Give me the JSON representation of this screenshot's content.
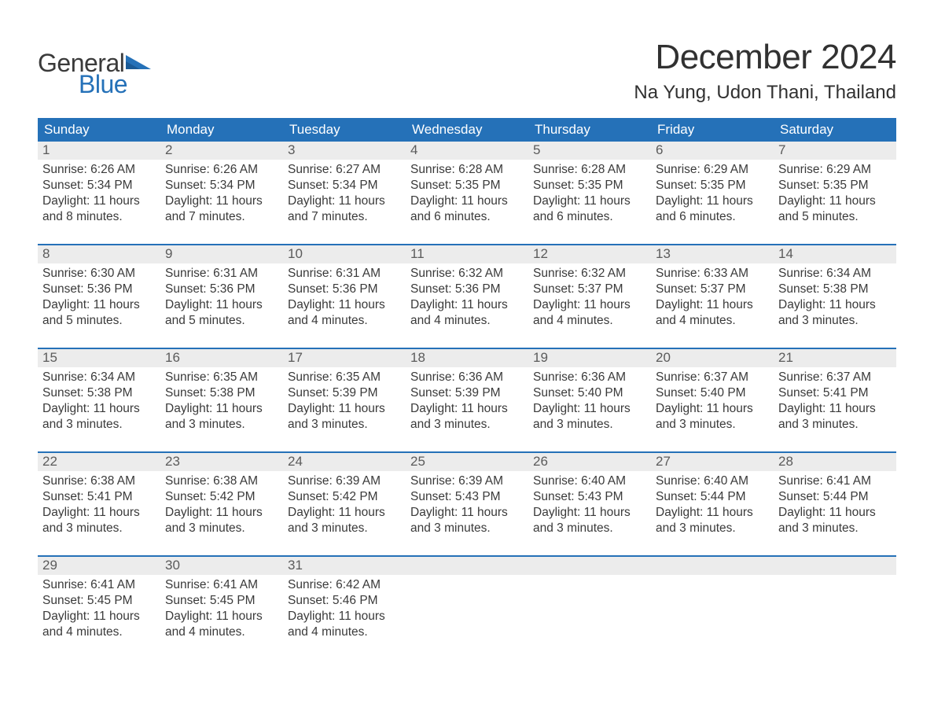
{
  "logo": {
    "word1": "General",
    "word2": "Blue",
    "flag_color": "#2571b8"
  },
  "title": "December 2024",
  "location": "Na Yung, Udon Thani, Thailand",
  "colors": {
    "header_bg": "#2571b8",
    "header_text": "#ffffff",
    "daynum_bg": "#ececec",
    "daynum_text": "#5b5b5b",
    "body_text": "#3a3a3a",
    "week_divider": "#2571b8",
    "page_bg": "#ffffff"
  },
  "typography": {
    "title_fontsize": 44,
    "location_fontsize": 24,
    "weekday_fontsize": 17,
    "daynum_fontsize": 17,
    "daytext_fontsize": 15.5,
    "logo_fontsize": 32
  },
  "weekdays": [
    "Sunday",
    "Monday",
    "Tuesday",
    "Wednesday",
    "Thursday",
    "Friday",
    "Saturday"
  ],
  "labels": {
    "sunrise": "Sunrise:",
    "sunset": "Sunset:",
    "daylight": "Daylight:"
  },
  "weeks": [
    [
      {
        "n": "1",
        "sr": "6:26 AM",
        "ss": "5:34 PM",
        "dl": "11 hours and 8 minutes."
      },
      {
        "n": "2",
        "sr": "6:26 AM",
        "ss": "5:34 PM",
        "dl": "11 hours and 7 minutes."
      },
      {
        "n": "3",
        "sr": "6:27 AM",
        "ss": "5:34 PM",
        "dl": "11 hours and 7 minutes."
      },
      {
        "n": "4",
        "sr": "6:28 AM",
        "ss": "5:35 PM",
        "dl": "11 hours and 6 minutes."
      },
      {
        "n": "5",
        "sr": "6:28 AM",
        "ss": "5:35 PM",
        "dl": "11 hours and 6 minutes."
      },
      {
        "n": "6",
        "sr": "6:29 AM",
        "ss": "5:35 PM",
        "dl": "11 hours and 6 minutes."
      },
      {
        "n": "7",
        "sr": "6:29 AM",
        "ss": "5:35 PM",
        "dl": "11 hours and 5 minutes."
      }
    ],
    [
      {
        "n": "8",
        "sr": "6:30 AM",
        "ss": "5:36 PM",
        "dl": "11 hours and 5 minutes."
      },
      {
        "n": "9",
        "sr": "6:31 AM",
        "ss": "5:36 PM",
        "dl": "11 hours and 5 minutes."
      },
      {
        "n": "10",
        "sr": "6:31 AM",
        "ss": "5:36 PM",
        "dl": "11 hours and 4 minutes."
      },
      {
        "n": "11",
        "sr": "6:32 AM",
        "ss": "5:36 PM",
        "dl": "11 hours and 4 minutes."
      },
      {
        "n": "12",
        "sr": "6:32 AM",
        "ss": "5:37 PM",
        "dl": "11 hours and 4 minutes."
      },
      {
        "n": "13",
        "sr": "6:33 AM",
        "ss": "5:37 PM",
        "dl": "11 hours and 4 minutes."
      },
      {
        "n": "14",
        "sr": "6:34 AM",
        "ss": "5:38 PM",
        "dl": "11 hours and 3 minutes."
      }
    ],
    [
      {
        "n": "15",
        "sr": "6:34 AM",
        "ss": "5:38 PM",
        "dl": "11 hours and 3 minutes."
      },
      {
        "n": "16",
        "sr": "6:35 AM",
        "ss": "5:38 PM",
        "dl": "11 hours and 3 minutes."
      },
      {
        "n": "17",
        "sr": "6:35 AM",
        "ss": "5:39 PM",
        "dl": "11 hours and 3 minutes."
      },
      {
        "n": "18",
        "sr": "6:36 AM",
        "ss": "5:39 PM",
        "dl": "11 hours and 3 minutes."
      },
      {
        "n": "19",
        "sr": "6:36 AM",
        "ss": "5:40 PM",
        "dl": "11 hours and 3 minutes."
      },
      {
        "n": "20",
        "sr": "6:37 AM",
        "ss": "5:40 PM",
        "dl": "11 hours and 3 minutes."
      },
      {
        "n": "21",
        "sr": "6:37 AM",
        "ss": "5:41 PM",
        "dl": "11 hours and 3 minutes."
      }
    ],
    [
      {
        "n": "22",
        "sr": "6:38 AM",
        "ss": "5:41 PM",
        "dl": "11 hours and 3 minutes."
      },
      {
        "n": "23",
        "sr": "6:38 AM",
        "ss": "5:42 PM",
        "dl": "11 hours and 3 minutes."
      },
      {
        "n": "24",
        "sr": "6:39 AM",
        "ss": "5:42 PM",
        "dl": "11 hours and 3 minutes."
      },
      {
        "n": "25",
        "sr": "6:39 AM",
        "ss": "5:43 PM",
        "dl": "11 hours and 3 minutes."
      },
      {
        "n": "26",
        "sr": "6:40 AM",
        "ss": "5:43 PM",
        "dl": "11 hours and 3 minutes."
      },
      {
        "n": "27",
        "sr": "6:40 AM",
        "ss": "5:44 PM",
        "dl": "11 hours and 3 minutes."
      },
      {
        "n": "28",
        "sr": "6:41 AM",
        "ss": "5:44 PM",
        "dl": "11 hours and 3 minutes."
      }
    ],
    [
      {
        "n": "29",
        "sr": "6:41 AM",
        "ss": "5:45 PM",
        "dl": "11 hours and 4 minutes."
      },
      {
        "n": "30",
        "sr": "6:41 AM",
        "ss": "5:45 PM",
        "dl": "11 hours and 4 minutes."
      },
      {
        "n": "31",
        "sr": "6:42 AM",
        "ss": "5:46 PM",
        "dl": "11 hours and 4 minutes."
      },
      {
        "empty": true
      },
      {
        "empty": true
      },
      {
        "empty": true
      },
      {
        "empty": true
      }
    ]
  ]
}
